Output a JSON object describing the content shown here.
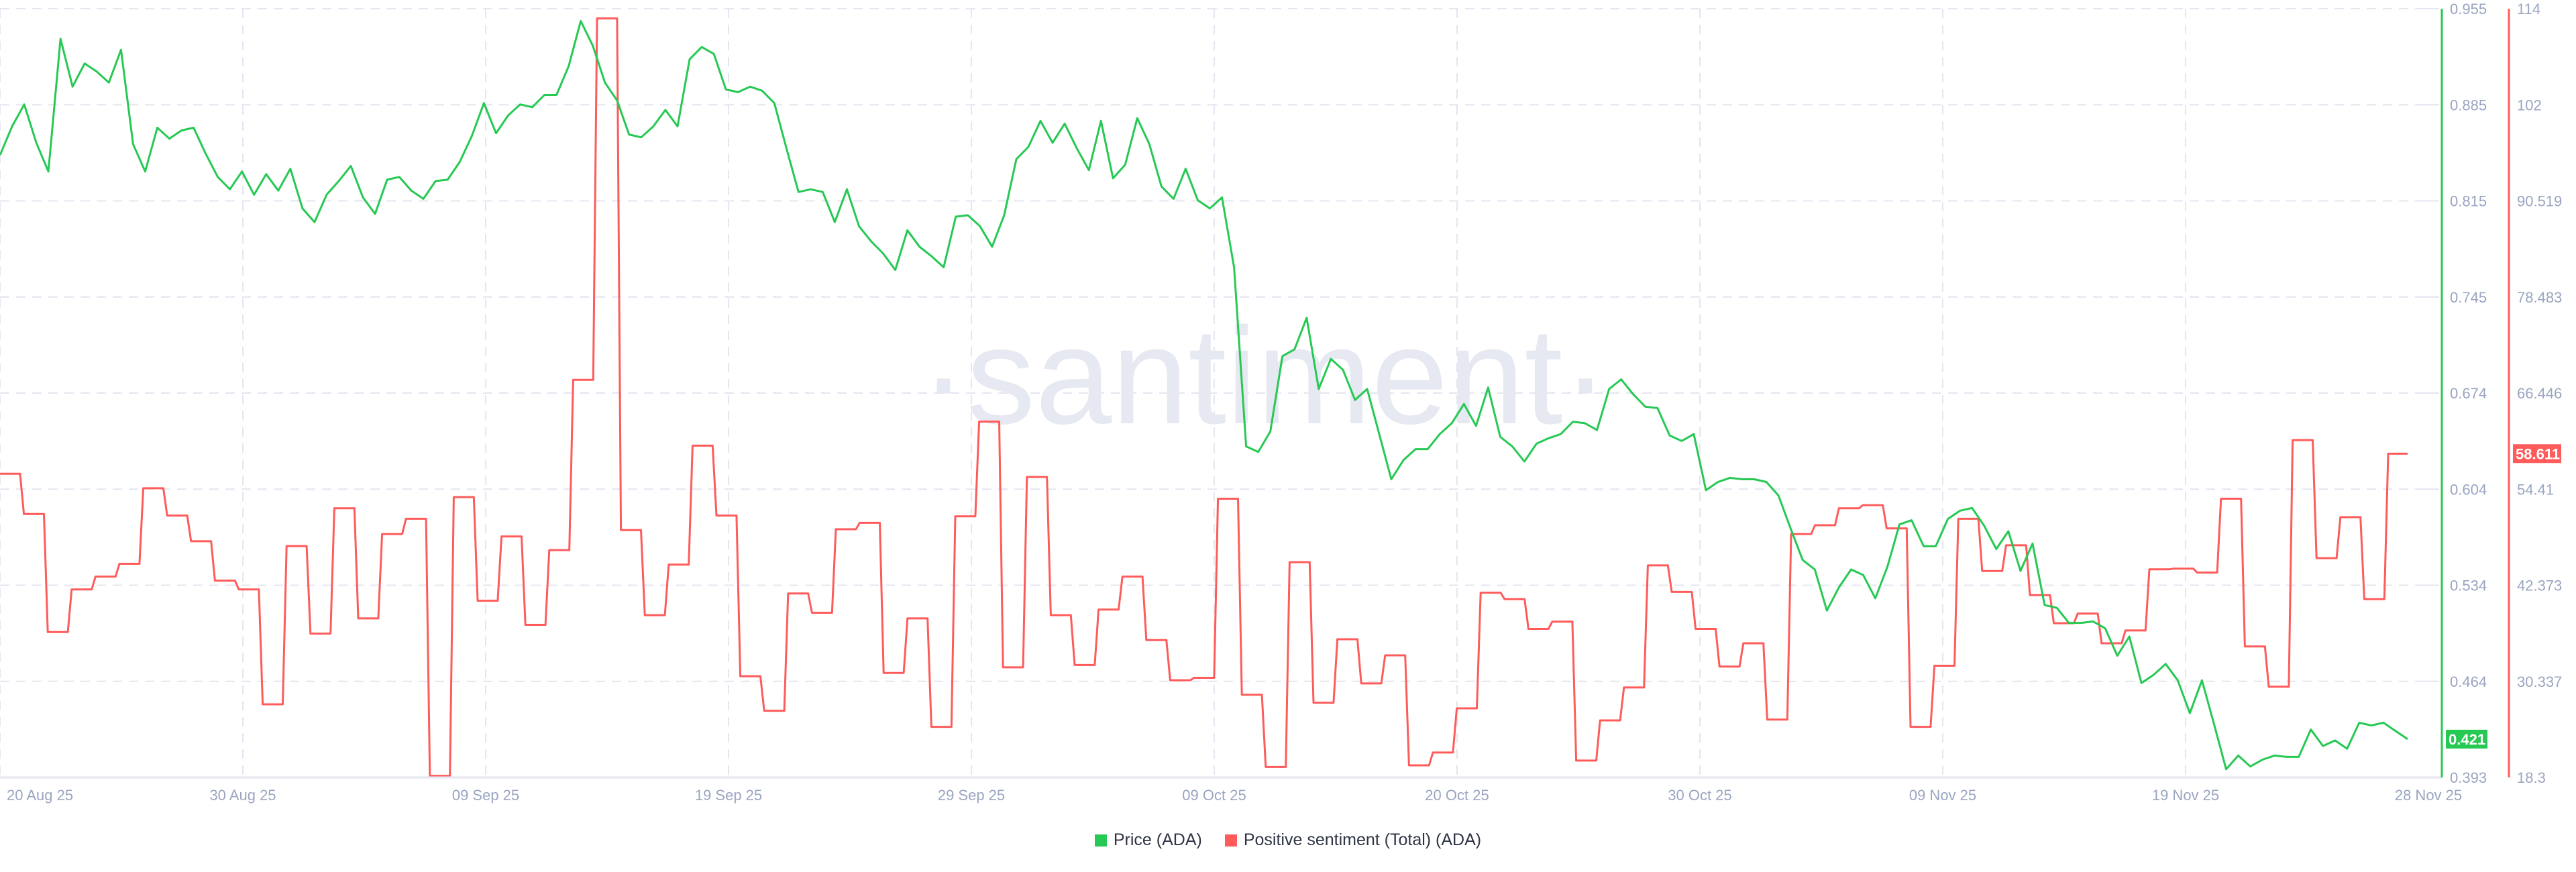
{
  "watermark": "·santiment·",
  "legend": {
    "price_label": "Price (ADA)",
    "sentiment_label": "Positive sentiment (Total) (ADA)"
  },
  "colors": {
    "price": "#26c953",
    "sentiment": "#ff5b5b",
    "grid": "#e4e6f0",
    "axis_text": "#9aa5c0"
  },
  "chart_data": {
    "type": "line",
    "grid": true,
    "legend_position": "bottom",
    "x_ticks": [
      "20 Aug 25",
      "30 Aug 25",
      "09 Sep 25",
      "19 Sep 25",
      "29 Sep 25",
      "09 Oct 25",
      "20 Oct 25",
      "30 Oct 25",
      "09 Nov 25",
      "19 Nov 25",
      "28 Nov 25"
    ],
    "price_axis": {
      "side": "right",
      "range": [
        0.393,
        0.955
      ],
      "ticks": [
        "0.955",
        "0.885",
        "0.815",
        "0.745",
        "0.674",
        "0.604",
        "0.534",
        "0.464",
        "0.393"
      ],
      "current_value": "0.421"
    },
    "sentiment_axis": {
      "side": "right",
      "range": [
        18.3,
        114
      ],
      "ticks": [
        "114",
        "102",
        "90.519",
        "78.483",
        "66.446",
        "54.41",
        "42.373",
        "30.337",
        "18.3"
      ],
      "current_value": "58.611"
    },
    "series": [
      {
        "name": "Price (ADA)",
        "axis": "price",
        "style": "line",
        "values": [
          0.848,
          0.869,
          0.885,
          0.857,
          0.836,
          0.933,
          0.898,
          0.915,
          0.909,
          0.901,
          0.925,
          0.856,
          0.836,
          0.868,
          0.86,
          0.866,
          0.868,
          0.849,
          0.832,
          0.823,
          0.836,
          0.819,
          0.834,
          0.822,
          0.838,
          0.809,
          0.799,
          0.819,
          0.829,
          0.84,
          0.817,
          0.805,
          0.83,
          0.832,
          0.822,
          0.816,
          0.829,
          0.83,
          0.843,
          0.862,
          0.886,
          0.864,
          0.877,
          0.885,
          0.883,
          0.892,
          0.892,
          0.913,
          0.946,
          0.928,
          0.901,
          0.888,
          0.863,
          0.861,
          0.869,
          0.881,
          0.869,
          0.918,
          0.927,
          0.922,
          0.896,
          0.894,
          0.898,
          0.895,
          0.886,
          0.853,
          0.821,
          0.823,
          0.821,
          0.799,
          0.823,
          0.796,
          0.785,
          0.776,
          0.764,
          0.793,
          0.781,
          0.774,
          0.766,
          0.803,
          0.804,
          0.796,
          0.781,
          0.804,
          0.845,
          0.854,
          0.873,
          0.857,
          0.871,
          0.853,
          0.837,
          0.873,
          0.831,
          0.841,
          0.875,
          0.856,
          0.825,
          0.816,
          0.838,
          0.815,
          0.809,
          0.817,
          0.766,
          0.635,
          0.631,
          0.646,
          0.701,
          0.706,
          0.729,
          0.677,
          0.699,
          0.691,
          0.669,
          0.677,
          0.644,
          0.611,
          0.625,
          0.633,
          0.633,
          0.644,
          0.652,
          0.666,
          0.65,
          0.678,
          0.642,
          0.635,
          0.624,
          0.637,
          0.641,
          0.644,
          0.653,
          0.652,
          0.647,
          0.677,
          0.684,
          0.673,
          0.664,
          0.663,
          0.643,
          0.639,
          0.644,
          0.603,
          0.609,
          0.612,
          0.611,
          0.611,
          0.609,
          0.599,
          0.575,
          0.552,
          0.545,
          0.515,
          0.532,
          0.545,
          0.541,
          0.524,
          0.547,
          0.578,
          0.581,
          0.562,
          0.562,
          0.582,
          0.588,
          0.59,
          0.577,
          0.56,
          0.573,
          0.544,
          0.564,
          0.519,
          0.517,
          0.506,
          0.506,
          0.507,
          0.502,
          0.482,
          0.496,
          0.462,
          0.468,
          0.476,
          0.464,
          0.44,
          0.464,
          0.432,
          0.399,
          0.409,
          0.401,
          0.406,
          0.409,
          0.408,
          0.408,
          0.428,
          0.416,
          0.42,
          0.414,
          0.433,
          0.431,
          0.433,
          0.427,
          0.421
        ]
      },
      {
        "name": "Positive sentiment (Total) (ADA)",
        "axis": "sentiment",
        "style": "step",
        "values": [
          56.1,
          51.1,
          36.4,
          41.7,
          43.3,
          44.9,
          54.3,
          50.9,
          47.7,
          42.8,
          41.7,
          27.4,
          47.1,
          36.2,
          51.8,
          38.1,
          48.6,
          50.5,
          18.5,
          53.2,
          40.3,
          48.3,
          37.3,
          46.6,
          67.8,
          112.8,
          49.1,
          38.5,
          44.8,
          59.6,
          50.9,
          30.9,
          26.6,
          41.2,
          38.8,
          49.2,
          50.0,
          31.3,
          38.1,
          24.6,
          50.8,
          62.6,
          32.0,
          55.7,
          38.5,
          32.3,
          39.2,
          43.3,
          35.4,
          30.4,
          30.7,
          53.0,
          28.6,
          19.6,
          45.1,
          27.6,
          35.5,
          30.0,
          33.5,
          19.8,
          21.4,
          26.9,
          41.3,
          40.5,
          36.8,
          37.7,
          20.4,
          25.4,
          29.5,
          44.7,
          41.4,
          36.8,
          32.1,
          35.0,
          25.5,
          48.6,
          49.7,
          51.8,
          52.2,
          49.3,
          24.6,
          32.2,
          50.5,
          44.0,
          47.2,
          41.0,
          37.5,
          38.7,
          35.0,
          36.6,
          44.2,
          44.3,
          43.8,
          53.0,
          34.6,
          29.6,
          60.3,
          45.6,
          50.7,
          40.5,
          58.6
        ]
      }
    ]
  }
}
